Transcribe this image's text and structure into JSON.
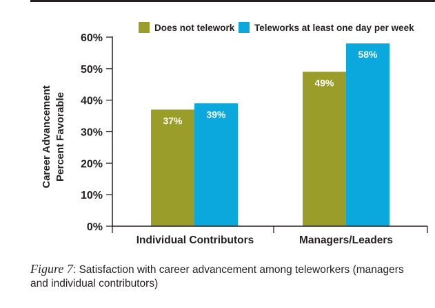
{
  "chart_data": {
    "type": "bar",
    "categories": [
      "Individual Contributors",
      "Managers/Leaders"
    ],
    "series": [
      {
        "name": "Does not telework",
        "values": [
          37,
          49
        ],
        "labels": [
          "37%",
          "49%"
        ],
        "color": "#9a9d2a"
      },
      {
        "name": "Teleworks at least one day per week",
        "values": [
          39,
          58
        ],
        "labels": [
          "39%",
          "58%"
        ],
        "color": "#0ba8dd"
      }
    ],
    "ylabel_lines": [
      "Career Advancement",
      "Percent Favorable"
    ],
    "ylim": [
      0,
      60
    ],
    "yticks": [
      0,
      10,
      20,
      30,
      40,
      50,
      60
    ],
    "ytick_labels": [
      "0%",
      "10%",
      "20%",
      "30%",
      "40%",
      "50%",
      "60%"
    ],
    "grid": false,
    "legend_position": "top-right"
  },
  "caption": {
    "figure_label": "Figure 7",
    "text": ": Satisfaction with career advancement among teleworkers (managers and individual contributors)"
  }
}
